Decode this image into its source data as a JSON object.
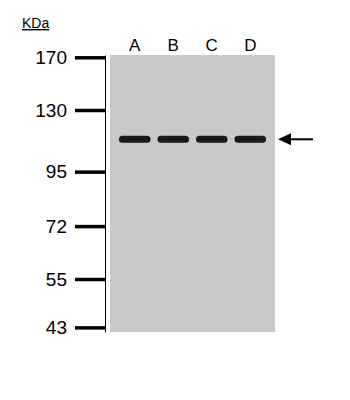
{
  "chart_data": {
    "type": "western_blot",
    "y_label": "KDa",
    "categories": [
      "A",
      "B",
      "C",
      "D"
    ],
    "values": [
      112,
      112,
      112,
      112
    ],
    "ylim": [
      42,
      172
    ],
    "yticks": [
      170,
      130,
      95,
      72,
      55,
      43
    ],
    "log": "y"
  }
}
